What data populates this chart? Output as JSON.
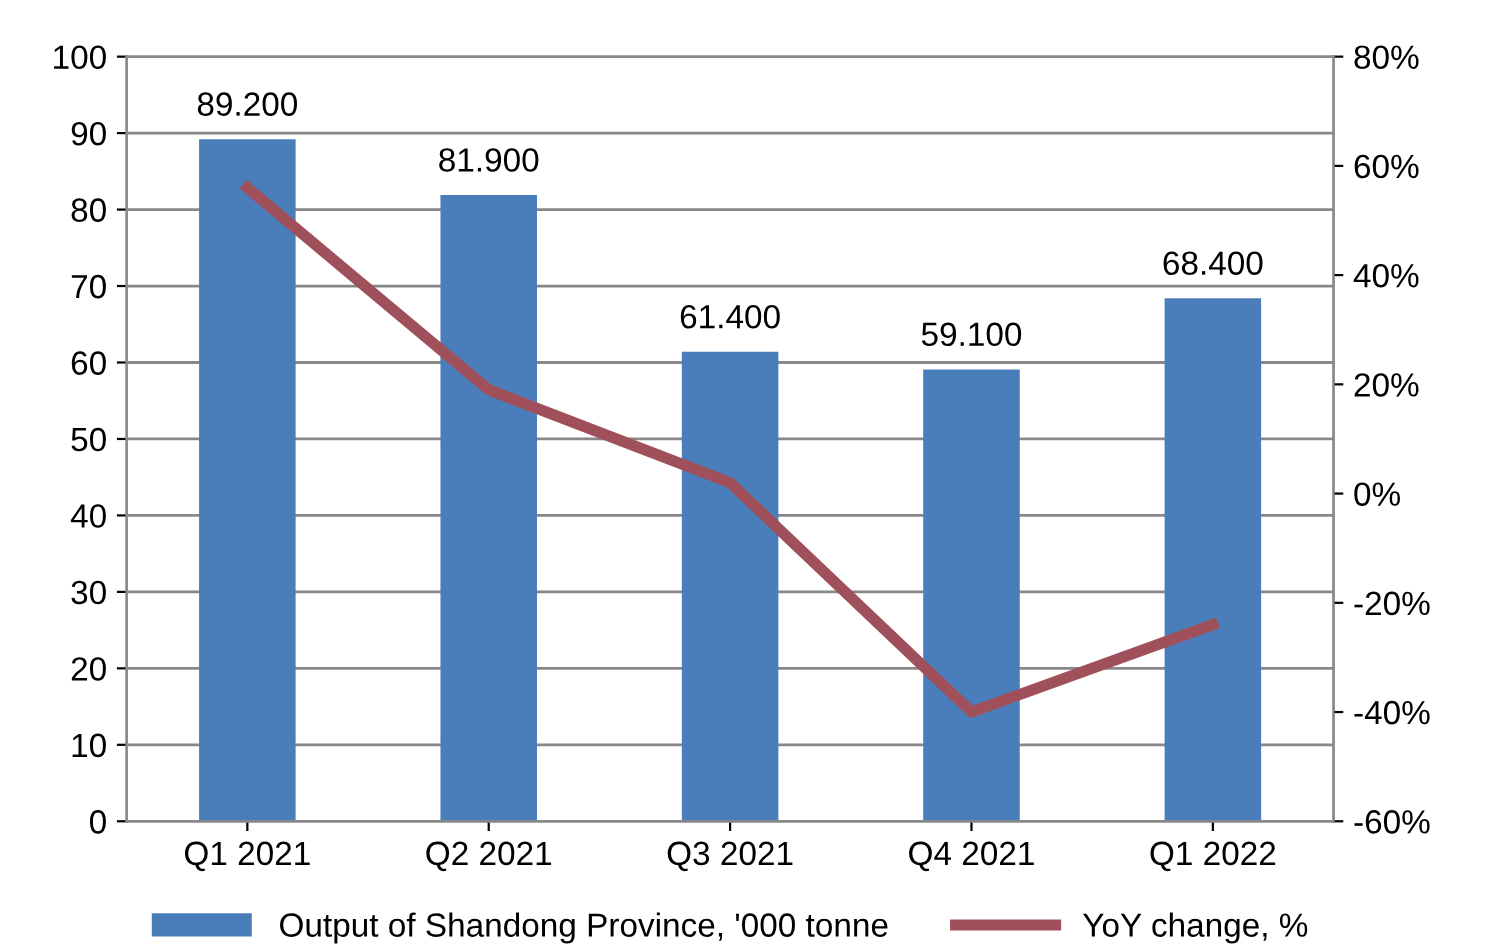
{
  "chart_data": {
    "type": "bar",
    "categories": [
      "Q1 2021",
      "Q2 2021",
      "Q3 2021",
      "Q4 2021",
      "Q1 2022"
    ],
    "series": [
      {
        "name": "Output of Shandong Province, '000 tonne",
        "color": "#4a7ebb",
        "values": [
          89.2,
          81.9,
          61.4,
          59.1,
          68.4
        ],
        "value_labels": [
          "89.200",
          "81.900",
          "61.400",
          "59.100",
          "68.400"
        ]
      },
      {
        "name": "YoY change, %",
        "type": "line",
        "axis": "y2",
        "color": "#a0505a",
        "values": [
          56,
          19,
          2,
          -40,
          -24
        ]
      }
    ],
    "ylim": [
      0,
      100
    ],
    "yticks": [
      0,
      10,
      20,
      30,
      40,
      50,
      60,
      70,
      80,
      90,
      100
    ],
    "y2lim": [
      -60,
      80
    ],
    "y2ticks": [
      {
        "value": -60,
        "label": "-60%"
      },
      {
        "value": -40,
        "label": "-40%"
      },
      {
        "value": -20,
        "label": "-20%"
      },
      {
        "value": 0,
        "label": "0%"
      },
      {
        "value": 20,
        "label": "20%"
      },
      {
        "value": 40,
        "label": "40%"
      },
      {
        "value": 60,
        "label": "60%"
      },
      {
        "value": 80,
        "label": "80%"
      }
    ],
    "grid": "y",
    "legend": "bottom",
    "marker": "none"
  }
}
